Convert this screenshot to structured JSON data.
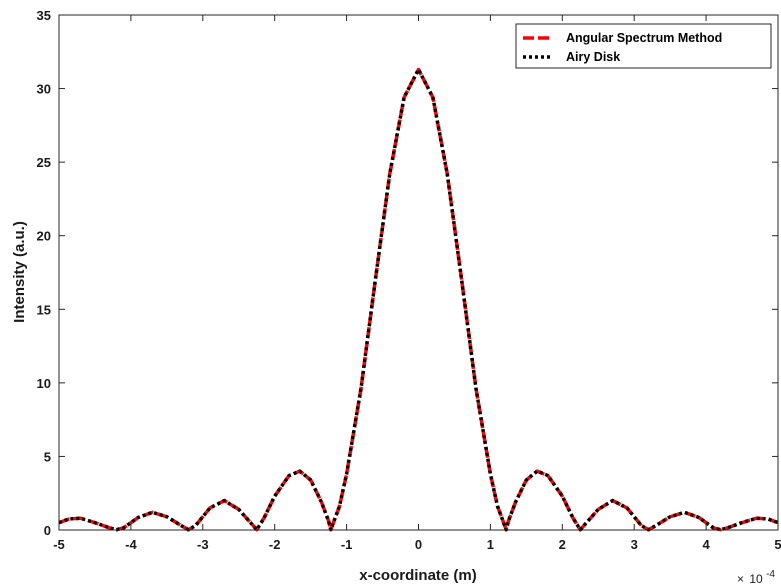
{
  "chart_data": {
    "type": "line",
    "title": "",
    "xlabel": "x-coordinate (m)",
    "ylabel": "Intensity (a.u.)",
    "x_scale_multiplier": "× 10^-4",
    "x_scale_parts": {
      "base": "10",
      "exponent": "-4",
      "times": "×"
    },
    "xlim": [
      -5,
      5
    ],
    "ylim": [
      0,
      35
    ],
    "x_unit_note": "x values in units of 1e-4 m",
    "xticks": [
      -5,
      -4,
      -3,
      -2,
      -1,
      0,
      1,
      2,
      3,
      4,
      5
    ],
    "xtick_labels": [
      "-5",
      "-4",
      "-3",
      "-2",
      "-1",
      "0",
      "1",
      "2",
      "3",
      "4",
      "5"
    ],
    "yticks": [
      0,
      5,
      10,
      15,
      20,
      25,
      30,
      35
    ],
    "ytick_labels": [
      "0",
      "5",
      "10",
      "15",
      "20",
      "25",
      "30",
      "35"
    ],
    "grid": false,
    "legend_position": "top-right",
    "series": [
      {
        "name": "Angular Spectrum Method",
        "color": "#ff0000",
        "line_style": "dashed",
        "x": [
          -5.0,
          -4.86,
          -4.7,
          -4.5,
          -4.3,
          -4.2,
          -4.1,
          -3.9,
          -3.7,
          -3.5,
          -3.3,
          -3.2,
          -3.1,
          -2.9,
          -2.7,
          -2.5,
          -2.3,
          -2.25,
          -2.15,
          -2.0,
          -1.8,
          -1.65,
          -1.5,
          -1.35,
          -1.25,
          -1.22,
          -1.1,
          -1.0,
          -0.8,
          -0.6,
          -0.4,
          -0.2,
          0.0,
          0.2,
          0.4,
          0.6,
          0.8,
          1.0,
          1.1,
          1.22,
          1.25,
          1.35,
          1.5,
          1.65,
          1.8,
          2.0,
          2.15,
          2.25,
          2.3,
          2.5,
          2.7,
          2.9,
          3.1,
          3.2,
          3.3,
          3.5,
          3.7,
          3.9,
          4.1,
          4.2,
          4.3,
          4.5,
          4.7,
          4.86,
          5.0
        ],
        "y": [
          0.5,
          0.75,
          0.8,
          0.5,
          0.15,
          0.02,
          0.15,
          0.85,
          1.2,
          0.9,
          0.3,
          0.02,
          0.3,
          1.5,
          2.0,
          1.4,
          0.3,
          0.02,
          0.8,
          2.3,
          3.7,
          4.0,
          3.4,
          1.9,
          0.6,
          0.02,
          1.6,
          3.8,
          9.6,
          17.0,
          24.2,
          29.4,
          31.3,
          29.4,
          24.2,
          17.0,
          9.6,
          3.8,
          1.6,
          0.02,
          0.6,
          1.9,
          3.4,
          4.0,
          3.7,
          2.3,
          0.8,
          0.02,
          0.3,
          1.4,
          2.0,
          1.5,
          0.3,
          0.02,
          0.3,
          0.9,
          1.2,
          0.85,
          0.15,
          0.02,
          0.15,
          0.5,
          0.8,
          0.75,
          0.5
        ]
      },
      {
        "name": "Airy Disk",
        "color": "#000000",
        "line_style": "dotted",
        "x": [
          -5.0,
          -4.86,
          -4.7,
          -4.5,
          -4.3,
          -4.2,
          -4.1,
          -3.9,
          -3.7,
          -3.5,
          -3.3,
          -3.2,
          -3.1,
          -2.9,
          -2.7,
          -2.5,
          -2.3,
          -2.25,
          -2.15,
          -2.0,
          -1.8,
          -1.65,
          -1.5,
          -1.35,
          -1.25,
          -1.22,
          -1.1,
          -1.0,
          -0.8,
          -0.6,
          -0.4,
          -0.2,
          0.0,
          0.2,
          0.4,
          0.6,
          0.8,
          1.0,
          1.1,
          1.22,
          1.25,
          1.35,
          1.5,
          1.65,
          1.8,
          2.0,
          2.15,
          2.25,
          2.3,
          2.5,
          2.7,
          2.9,
          3.1,
          3.2,
          3.3,
          3.5,
          3.7,
          3.9,
          4.1,
          4.2,
          4.3,
          4.5,
          4.7,
          4.86,
          5.0
        ],
        "y": [
          0.5,
          0.75,
          0.8,
          0.5,
          0.15,
          0.02,
          0.15,
          0.85,
          1.2,
          0.9,
          0.3,
          0.02,
          0.3,
          1.5,
          2.0,
          1.4,
          0.3,
          0.02,
          0.8,
          2.3,
          3.7,
          4.0,
          3.4,
          1.9,
          0.6,
          0.02,
          1.6,
          3.8,
          9.6,
          17.0,
          24.2,
          29.4,
          31.3,
          29.4,
          24.2,
          17.0,
          9.6,
          3.8,
          1.6,
          0.02,
          0.6,
          1.9,
          3.4,
          4.0,
          3.7,
          2.3,
          0.8,
          0.02,
          0.3,
          1.4,
          2.0,
          1.5,
          0.3,
          0.02,
          0.3,
          0.9,
          1.2,
          0.85,
          0.15,
          0.02,
          0.15,
          0.5,
          0.8,
          0.75,
          0.5
        ]
      }
    ]
  }
}
